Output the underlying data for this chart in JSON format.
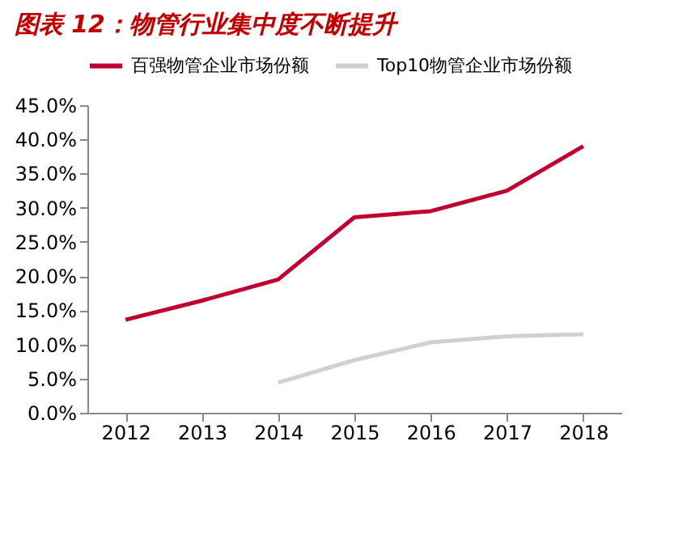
{
  "chart_data": {
    "type": "line",
    "title": "图表 12：物管行业集中度不断提升",
    "categories": [
      "2012",
      "2013",
      "2014",
      "2015",
      "2016",
      "2017",
      "2018"
    ],
    "series": [
      {
        "name": "百强物管企业市场份额",
        "color": "#c00030",
        "values": [
          13.6,
          16.4,
          19.5,
          28.6,
          29.5,
          32.5,
          39.0
        ]
      },
      {
        "name": "Top10物管企业市场份额",
        "color": "#d0d0d0",
        "values": [
          null,
          null,
          4.4,
          7.7,
          10.3,
          11.2,
          11.5
        ]
      }
    ],
    "ylim": [
      0,
      45
    ],
    "yticks": [
      {
        "value": 0,
        "label": "0.0%"
      },
      {
        "value": 5,
        "label": "5.0%"
      },
      {
        "value": 10,
        "label": "10.0%"
      },
      {
        "value": 15,
        "label": "15.0%"
      },
      {
        "value": 20,
        "label": "20.0%"
      },
      {
        "value": 25,
        "label": "25.0%"
      },
      {
        "value": 30,
        "label": "30.0%"
      },
      {
        "value": 35,
        "label": "35.0%"
      },
      {
        "value": 40,
        "label": "40.0%"
      },
      {
        "value": 45,
        "label": "45.0%"
      }
    ],
    "grid": false,
    "legend": "top",
    "marker": "none",
    "line_style": "solid"
  }
}
